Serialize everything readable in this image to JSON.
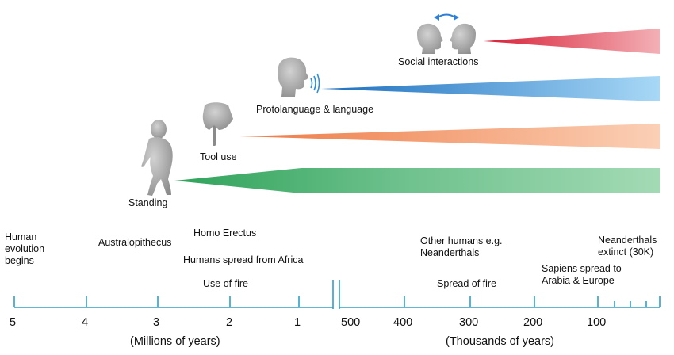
{
  "wedges": [
    {
      "label": "Standing",
      "color": "#6cc08b",
      "icon": "walking-figure-icon"
    },
    {
      "label": "Tool use",
      "color": "#f6a77a",
      "icon": "stone-axe-icon"
    },
    {
      "label": "Protolanguage & language",
      "color": "#3b8fd6",
      "icon": "speaking-head-icon"
    },
    {
      "label": "Social interactions",
      "color": "#e13a4a",
      "icon": "two-heads-icon"
    }
  ],
  "events": {
    "human_evolution_begins": "Human\nevolution\nbegins",
    "australopithecus": "Australopithecus",
    "homo_erectus": "Homo Erectus",
    "humans_spread": "Humans spread from Africa",
    "use_of_fire": "Use of fire",
    "other_humans": "Other humans e.g.\nNeanderthals",
    "spread_of_fire": "Spread of fire",
    "sapiens_spread": "Sapiens spread to\nArabia & Europe",
    "neanderthals_extinct": "Neanderthals\nextinct (30K)"
  },
  "axis_left": {
    "ticks": [
      "5",
      "4",
      "3",
      "2",
      "1"
    ],
    "unit": "(Millions of years)"
  },
  "axis_right": {
    "ticks": [
      "500",
      "400",
      "300",
      "200",
      "100"
    ],
    "unit": "(Thousands of years)"
  },
  "colors": {
    "axis": "#2e9fc6",
    "icon": "#9a9a9a",
    "arrow": "#2e7fd6"
  }
}
